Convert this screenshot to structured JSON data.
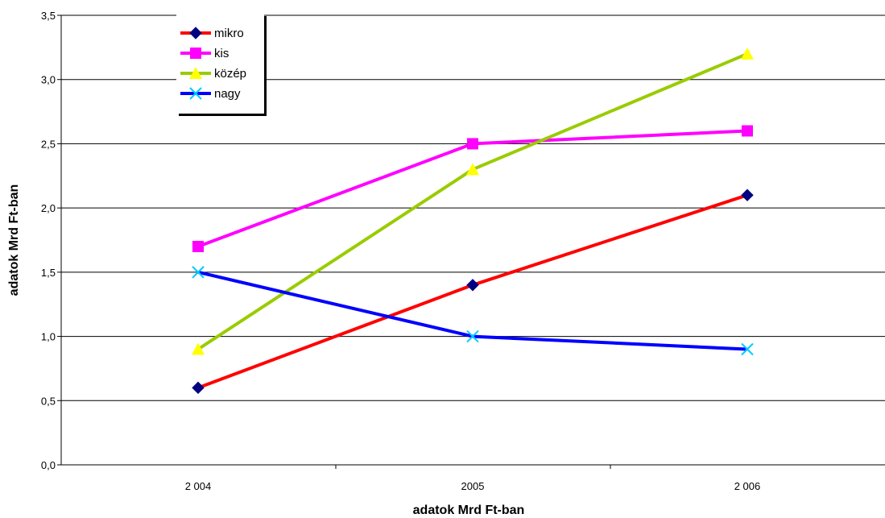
{
  "chart_data": {
    "type": "line",
    "categories": [
      "2 004",
      "2005",
      "2 006"
    ],
    "ylabel": "adatok Mrd Ft-ban",
    "xlabel": "adatok Mrd Ft-ban",
    "ylim": [
      0,
      3.5
    ],
    "ytick_labels": [
      "0,0",
      "0,5",
      "1,0",
      "1,5",
      "2,0",
      "2,5",
      "3,0",
      "3,5"
    ],
    "grid": true,
    "legend_position": "top-left",
    "series": [
      {
        "name": "mikro",
        "values": [
          0.6,
          1.4,
          2.1
        ],
        "color": "#ff0000",
        "marker": "diamond",
        "marker_color": "#000080"
      },
      {
        "name": "kis",
        "values": [
          1.7,
          2.5,
          2.6
        ],
        "color": "#ff00ff",
        "marker": "square",
        "marker_color": "#ff00ff"
      },
      {
        "name": "közép",
        "values": [
          0.9,
          2.3,
          3.2
        ],
        "color": "#99cc00",
        "marker": "triangle",
        "marker_color": "#ffff00"
      },
      {
        "name": "nagy",
        "values": [
          1.5,
          1.0,
          0.9
        ],
        "color": "#0000ff",
        "marker": "asterisk",
        "marker_color": "#00ccff"
      }
    ]
  }
}
